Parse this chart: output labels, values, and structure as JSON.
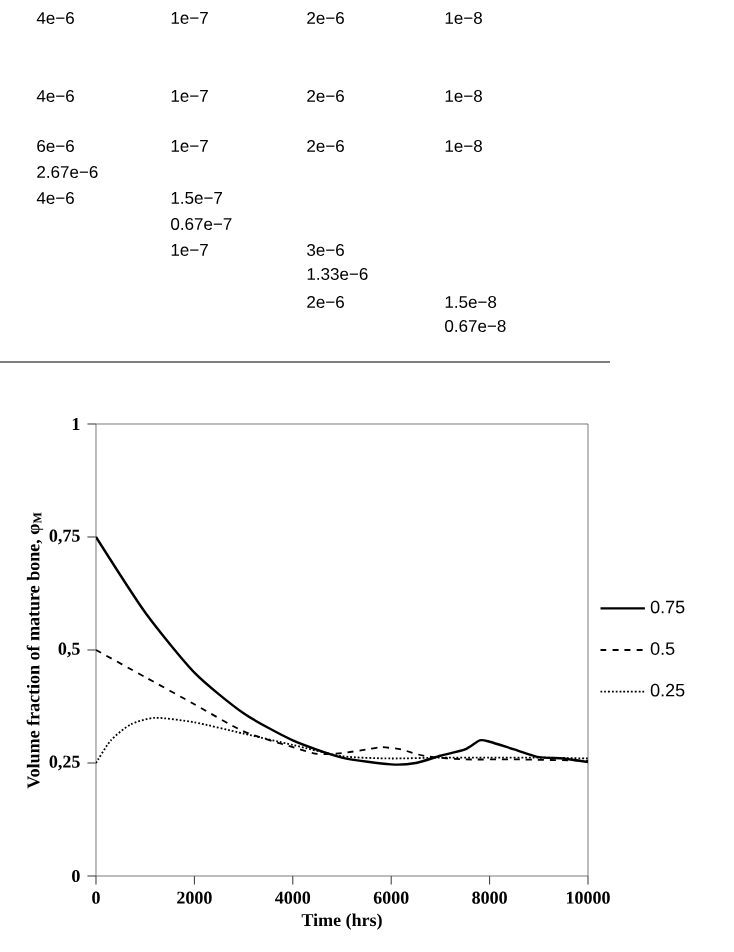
{
  "chart_data": {
    "type": "line",
    "xlabel": "Time (hrs)",
    "ylabel": "Volume fraction of mature bone, φ$_{M}$",
    "xlim": [
      0,
      10000
    ],
    "xticks": [
      0,
      2000,
      4000,
      6000,
      8000,
      10000
    ],
    "ylim": [
      0,
      1
    ],
    "yticks": [
      0,
      {
        "value": 0.25,
        "label": "0,25"
      },
      {
        "value": 0.5,
        "label": "0,5"
      },
      {
        "value": 0.75,
        "label": "0,75"
      },
      1
    ],
    "grid": false,
    "legend": "right",
    "marker": "none",
    "series": [
      {
        "name": "0.75",
        "color": "#000000",
        "line_style": "solid",
        "x": [
          0,
          1000,
          2000,
          3000,
          4000,
          5000,
          6000,
          6500,
          7000,
          7500,
          7800,
          8000,
          8500,
          9000,
          9500,
          10000
        ],
        "values": [
          0.75,
          0.583,
          0.45,
          0.36,
          0.3,
          0.262,
          0.247,
          0.25,
          0.266,
          0.28,
          0.3,
          0.297,
          0.28,
          0.263,
          0.26,
          0.252
        ]
      },
      {
        "name": "0.5",
        "color": "#000000",
        "line_style": "dashed",
        "x": [
          0,
          1000,
          2000,
          3000,
          4000,
          4500,
          5000,
          5500,
          5800,
          6200,
          6700,
          7500,
          8500,
          10000
        ],
        "values": [
          0.5,
          0.44,
          0.38,
          0.32,
          0.285,
          0.27,
          0.272,
          0.28,
          0.285,
          0.28,
          0.265,
          0.258,
          0.258,
          0.255
        ]
      },
      {
        "name": "0.25",
        "color": "#000000",
        "line_style": "dotted",
        "x": [
          0,
          300,
          700,
          1200,
          2000,
          3000,
          4000,
          5000,
          6000,
          7000,
          8000,
          9000,
          10000
        ],
        "values": [
          0.25,
          0.3,
          0.335,
          0.35,
          0.34,
          0.315,
          0.29,
          0.265,
          0.26,
          0.262,
          0.262,
          0.262,
          0.26
        ]
      }
    ],
    "annotations": [
      "4e−6",
      "1e−7",
      "2e−6",
      "1e−8",
      "4e−6",
      "1e−7",
      "2e−6",
      "1e−8",
      "6e−6",
      "1e−7",
      "2e−6",
      "1e−8",
      "2.67e−6",
      "4e−6",
      "1.5e−7",
      "0.67e−7",
      "1e−7",
      "3e−6",
      "1.33e−6",
      "2e−6",
      "1.5e−8",
      "0.67e−8"
    ]
  }
}
